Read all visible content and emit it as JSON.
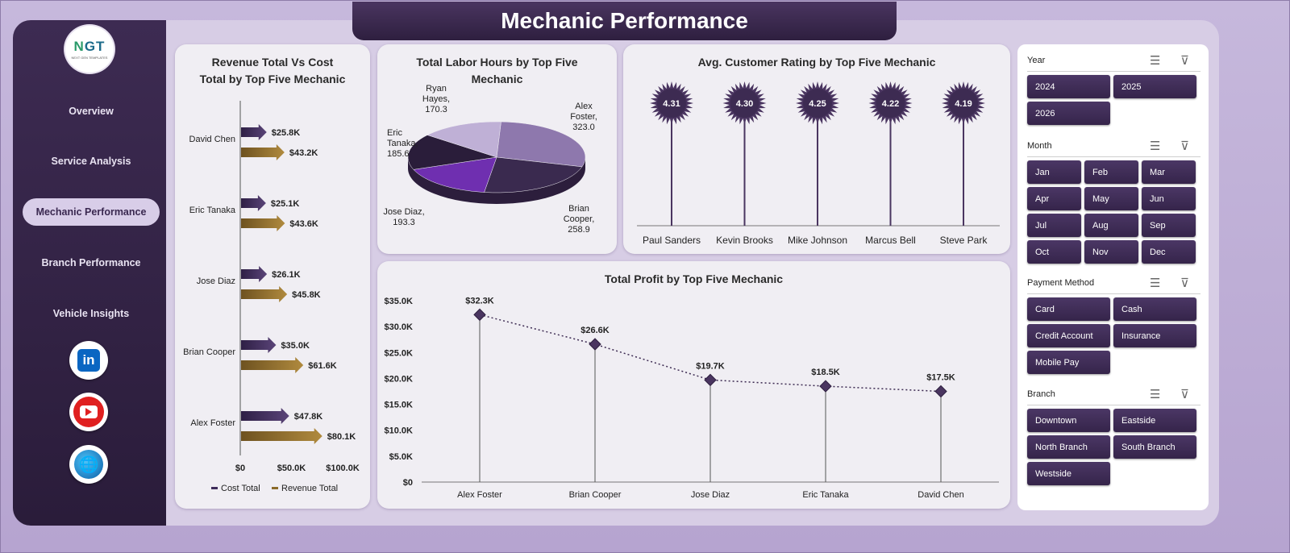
{
  "header": {
    "title": "Mechanic Performance"
  },
  "logo": {
    "mark_n": "N",
    "mark_gt": "GT",
    "tagline": "NEXT GEN TEMPLATES"
  },
  "nav": [
    {
      "label": "Overview"
    },
    {
      "label": "Service Analysis"
    },
    {
      "label": "Mechanic Performance",
      "active": true
    },
    {
      "label": "Branch Performance"
    },
    {
      "label": "Vehicle Insights"
    }
  ],
  "social": {
    "linkedin": "in",
    "web": "🌐"
  },
  "revenue_cost": {
    "title_line1": "Revenue  Total Vs Cost",
    "title_line2": "Total by Top Five  Mechanic",
    "legend_cost": "Cost Total",
    "legend_revenue": "Revenue Total",
    "color_cost": "#3d2b5a",
    "color_revenue": "#8a6a2a"
  },
  "labor_hours": {
    "title_line1": "Total Labor Hours by Top Five",
    "title_line2": "Mechanic"
  },
  "rating": {
    "title": "Avg. Customer Rating by Top Five Mechanic"
  },
  "profit": {
    "title": "Total Profit by Top Five Mechanic"
  },
  "chart_data": [
    {
      "type": "bar",
      "orientation": "horizontal",
      "categories": [
        "David Chen",
        "Eric Tanaka",
        "Jose Diaz",
        "Brian Cooper",
        "Alex Foster"
      ],
      "series": [
        {
          "name": "Cost Total",
          "values": [
            25.8,
            25.1,
            26.1,
            35.0,
            47.8
          ],
          "labels": [
            "$25.8K",
            "$25.1K",
            "$26.1K",
            "$35.0K",
            "$47.8K"
          ]
        },
        {
          "name": "Revenue Total",
          "values": [
            43.2,
            43.6,
            45.8,
            61.6,
            80.1
          ],
          "labels": [
            "$43.2K",
            "$43.6K",
            "$45.8K",
            "$61.6K",
            "$80.1K"
          ]
        }
      ],
      "xticks": [
        "$0",
        "$50.0K",
        "$100.0K"
      ],
      "xlim": [
        0,
        100
      ]
    },
    {
      "type": "pie",
      "slices": [
        {
          "label": "Alex Foster, 323.0",
          "line1": "Alex",
          "line2": "Foster,",
          "line3": "323.0",
          "value": 323.0,
          "color": "#8e78ad"
        },
        {
          "label": "Brian Cooper, 258.9",
          "line1": "Brian",
          "line2": "Cooper,",
          "line3": "258.9",
          "value": 258.9,
          "color": "#3a2a4f"
        },
        {
          "label": "Jose Diaz, 193.3",
          "line1": "Jose Diaz,",
          "line2": "193.3",
          "value": 193.3,
          "color": "#6f2fb0"
        },
        {
          "label": "Eric Tanaka, 185.6",
          "line1": "Eric",
          "line2": "Tanaka,",
          "line3": "185.6",
          "value": 185.6,
          "color": "#2a1d3a"
        },
        {
          "label": "Ryan Hayes, 170.3",
          "line1": "Ryan",
          "line2": "Hayes,",
          "line3": "170.3",
          "value": 170.3,
          "color": "#bfb0d6"
        }
      ]
    },
    {
      "type": "bar",
      "style": "lollipop",
      "categories": [
        "Paul Sanders",
        "Kevin Brooks",
        "Mike Johnson",
        "Marcus Bell",
        "Steve Park"
      ],
      "values": [
        4.31,
        4.3,
        4.25,
        4.22,
        4.19
      ],
      "labels": [
        "4.31",
        "4.30",
        "4.25",
        "4.22",
        "4.19"
      ]
    },
    {
      "type": "line",
      "categories": [
        "Alex Foster",
        "Brian Cooper",
        "Jose Diaz",
        "Eric Tanaka",
        "David Chen"
      ],
      "values": [
        32.3,
        26.6,
        19.7,
        18.5,
        17.5
      ],
      "labels": [
        "$32.3K",
        "$26.6K",
        "$19.7K",
        "$18.5K",
        "$17.5K"
      ],
      "yticks": [
        "$0",
        "$5.0K",
        "$10.0K",
        "$15.0K",
        "$20.0K",
        "$25.0K",
        "$30.0K",
        "$35.0K"
      ],
      "ylim": [
        0,
        35
      ]
    }
  ],
  "slicers": [
    {
      "title": "Year",
      "items": [
        "2024",
        "2025",
        "2026"
      ]
    },
    {
      "title": "Month",
      "items": [
        "Jan",
        "Feb",
        "Mar",
        "Apr",
        "May",
        "Jun",
        "Jul",
        "Aug",
        "Sep",
        "Oct",
        "Nov",
        "Dec"
      ]
    },
    {
      "title": "Payment Method",
      "items": [
        "Card",
        "Cash",
        "Credit Account",
        "Insurance",
        "Mobile Pay"
      ]
    },
    {
      "title": "Branch",
      "items": [
        "Downtown",
        "Eastside",
        "North Branch",
        "South Branch",
        "Westside"
      ]
    }
  ]
}
